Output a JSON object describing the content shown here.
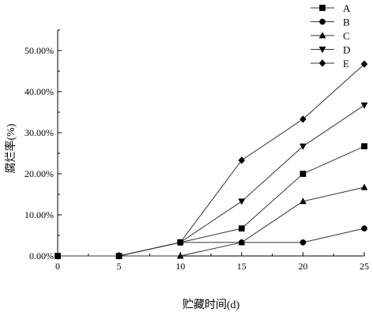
{
  "chart_data": {
    "type": "line",
    "xlabel": "贮藏时间(d)",
    "ylabel": "腐烂率(%)",
    "x": [
      0,
      5,
      10,
      15,
      20,
      25
    ],
    "x_ticks": [
      "0",
      "5",
      "10",
      "15",
      "20",
      "25"
    ],
    "y_ticks": [
      "0.00%",
      "10.00%",
      "20.00%",
      "30.00%",
      "40.00%",
      "50.00%"
    ],
    "xlim": [
      0,
      25
    ],
    "ylim": [
      0,
      55
    ],
    "y_unit": "%",
    "grid": false,
    "legend_position": "top-right",
    "series": [
      {
        "name": "A",
        "marker": "square",
        "values": [
          0,
          0,
          3.3,
          6.7,
          20.0,
          26.7
        ]
      },
      {
        "name": "B",
        "marker": "circle",
        "values": [
          0,
          0,
          3.3,
          3.3,
          3.3,
          6.7
        ]
      },
      {
        "name": "C",
        "marker": "triangle-up",
        "values": [
          0,
          0,
          0,
          3.3,
          13.3,
          16.7
        ]
      },
      {
        "name": "D",
        "marker": "triangle-down",
        "values": [
          0,
          0,
          3.3,
          13.3,
          26.7,
          36.7
        ]
      },
      {
        "name": "E",
        "marker": "diamond",
        "values": [
          0,
          0,
          3.3,
          23.3,
          33.3,
          46.7
        ]
      }
    ],
    "colors": {
      "line": "#333333",
      "marker": "#000000",
      "axis": "#000000",
      "background": "#ffffff"
    }
  }
}
